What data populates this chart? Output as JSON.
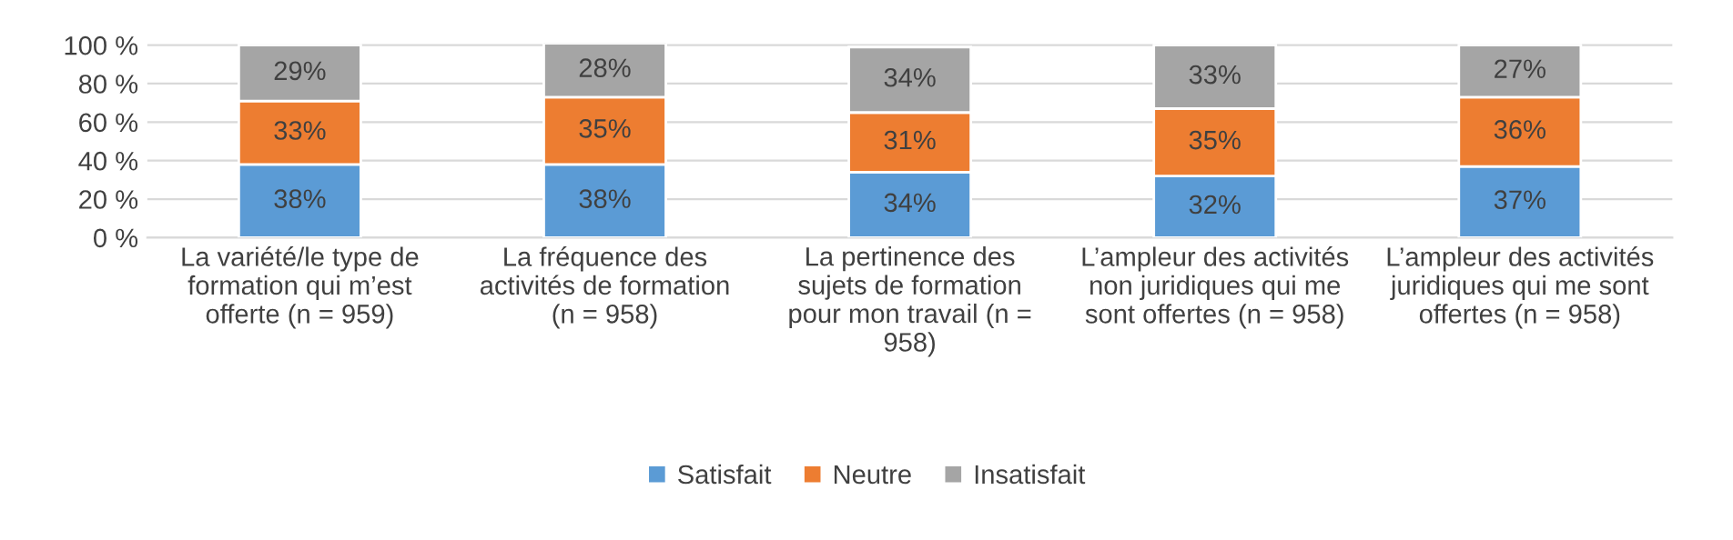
{
  "chart_data": {
    "type": "bar",
    "stacked": true,
    "categories": [
      "La variété/le type de\nformation qui m’est\nofferte (n = 959)",
      "La fréquence des\nactivités de formation\n(n = 958)",
      "La pertinence des\nsujets de formation\npour mon travail (n =\n958)",
      "L’ampleur des activités\nnon juridiques qui me\nsont offertes (n = 958)",
      "L’ampleur des activités\njuridiques qui me sont\noffertes (n = 958)"
    ],
    "series": [
      {
        "name": "Satisfait",
        "color": "#5b9bd5",
        "values": [
          38,
          38,
          34,
          32,
          37
        ],
        "value_labels": [
          "38%",
          "38%",
          "34%",
          "32%",
          "37%"
        ]
      },
      {
        "name": "Neutre",
        "color": "#ed7d31",
        "values": [
          33,
          35,
          31,
          35,
          36
        ],
        "value_labels": [
          "33%",
          "35%",
          "31%",
          "35%",
          "36%"
        ]
      },
      {
        "name": "Insatisfait",
        "color": "#a5a5a5",
        "values": [
          29,
          28,
          34,
          33,
          27
        ],
        "value_labels": [
          "29%",
          "28%",
          "34%",
          "33%",
          "27%"
        ]
      }
    ],
    "ylim": [
      0,
      101
    ],
    "yticks": [
      {
        "value": 0,
        "label": "0 %"
      },
      {
        "value": 20,
        "label": "20 %"
      },
      {
        "value": 40,
        "label": "40 %"
      },
      {
        "value": 60,
        "label": "60 %"
      },
      {
        "value": 80,
        "label": "80 %"
      },
      {
        "value": 100,
        "label": "100 %"
      }
    ],
    "grid": "y",
    "legend": "bottom"
  }
}
